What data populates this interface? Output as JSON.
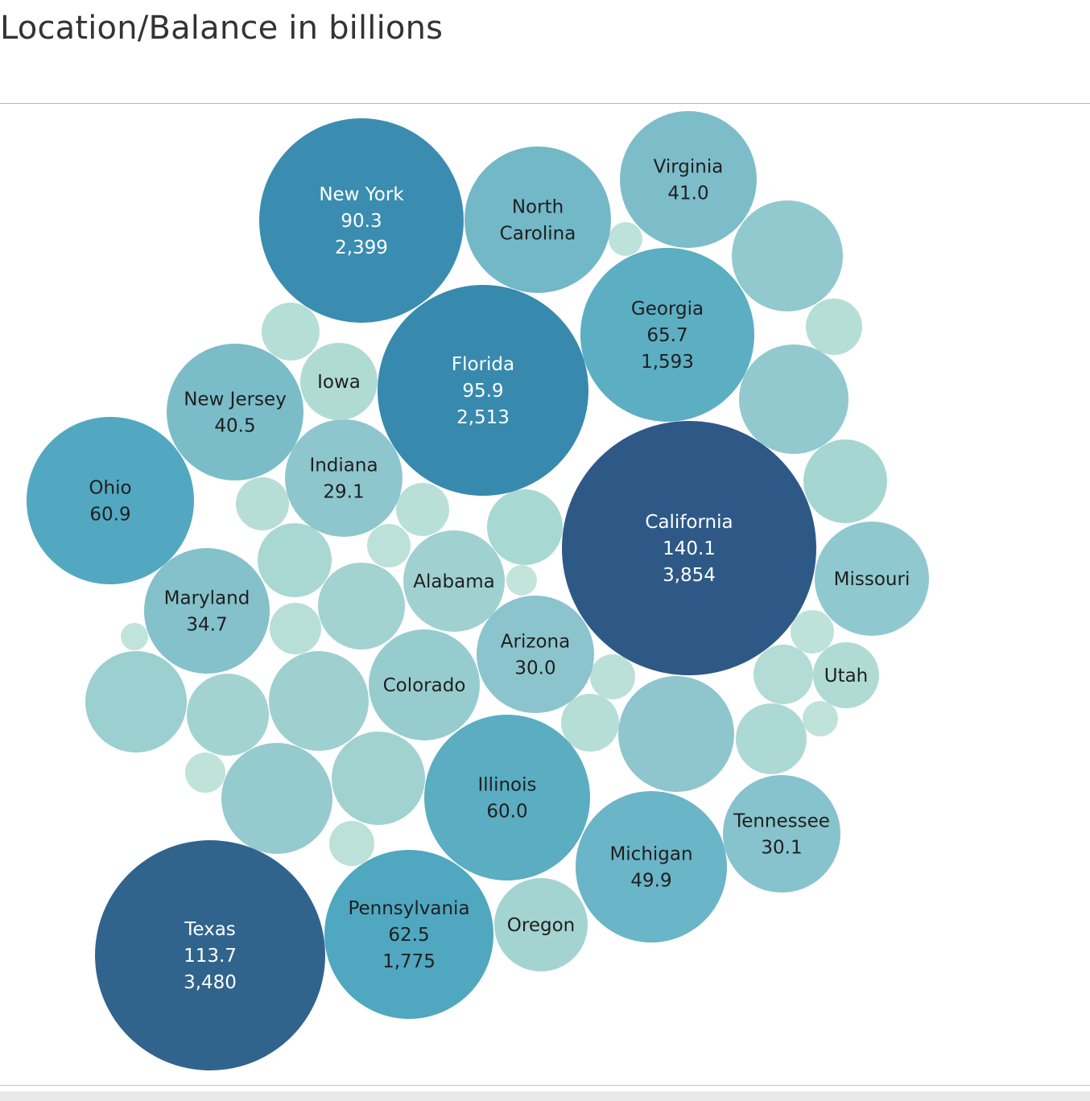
{
  "title": "Location/Balance in billions",
  "chart_data": {
    "type": "packed-bubble",
    "title": "Location/Balance in billions",
    "size_measure": "Balance in billions",
    "bubbles": [
      {
        "label": "California",
        "value": 140.1,
        "count": "3,854",
        "color": "#2e5987"
      },
      {
        "label": "Texas",
        "value": 113.7,
        "count": "3,480",
        "color": "#30648d"
      },
      {
        "label": "Florida",
        "value": 95.9,
        "count": "2,513",
        "color": "#378aad"
      },
      {
        "label": "New York",
        "value": 90.3,
        "count": "2,399",
        "color": "#3a8db0"
      },
      {
        "label": "Georgia",
        "value": 65.7,
        "count": "1,593",
        "color": "#5caec3"
      },
      {
        "label": "Pennsylvania",
        "value": 62.5,
        "count": "1,775",
        "color": "#4fa7c0"
      },
      {
        "label": "Ohio",
        "value": 60.9,
        "color": "#52a8c0"
      },
      {
        "label": "Illinois",
        "value": 60.0,
        "color": "#5badc2"
      },
      {
        "label": "Michigan",
        "value": 49.9,
        "color": "#6ab5c7"
      },
      {
        "label": "Virginia",
        "value": 41.0,
        "color": "#7dbdca"
      },
      {
        "label": "New Jersey",
        "value": 40.5,
        "color": "#7bbcc9"
      },
      {
        "label": "Maryland",
        "value": 34.7,
        "color": "#84c1cb"
      },
      {
        "label": "Tennessee",
        "value": 30.1,
        "color": "#87c3cc"
      },
      {
        "label": "Arizona",
        "value": 30.0,
        "color": "#8bc4cd"
      },
      {
        "label": "Indiana",
        "value": 29.1,
        "color": "#8ec6ce"
      },
      {
        "label": "North Carolina",
        "color": "#73b8c6"
      },
      {
        "label": "Missouri",
        "color": "#8fc9cf"
      },
      {
        "label": "Colorado",
        "color": "#97cccf"
      },
      {
        "label": "Alabama",
        "color": "#9fd1d0"
      },
      {
        "label": "Oregon",
        "color": "#a4d4d2"
      },
      {
        "label": "Iowa",
        "color": "#b0dbd4"
      },
      {
        "label": "Utah",
        "color": "#b0dbd5"
      }
    ],
    "unlabeled_bubble_count": 29
  }
}
